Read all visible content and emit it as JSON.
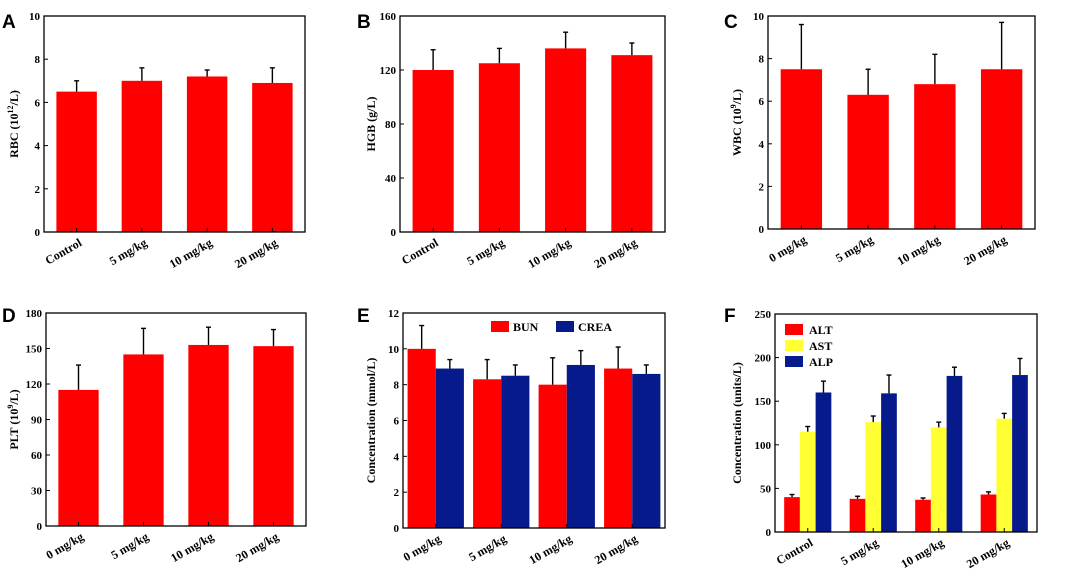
{
  "colors": {
    "red": "#ff0000",
    "navy": "#071a8c",
    "yellow": "#ffff33"
  },
  "chart_data": [
    {
      "panel": "A",
      "type": "bar",
      "ylabel_pre": "RBC (10",
      "ylabel_sup": "12",
      "ylabel_post": "/L)",
      "ylim": [
        0,
        10
      ],
      "yticks": [
        0,
        2,
        4,
        6,
        8,
        10
      ],
      "categories": [
        "Control",
        "5 mg/kg",
        "10 mg/kg",
        "20 mg/kg"
      ],
      "series": [
        {
          "name": "RBC",
          "color": "#ff0000",
          "values": [
            6.5,
            7.0,
            7.2,
            6.9
          ],
          "errors": [
            0.5,
            0.6,
            0.3,
            0.7
          ]
        }
      ]
    },
    {
      "panel": "B",
      "type": "bar",
      "ylabel_pre": "HGB (g/L)",
      "ylabel_sup": "",
      "ylabel_post": "",
      "ylim": [
        0,
        160
      ],
      "yticks": [
        0,
        40,
        80,
        120,
        160
      ],
      "categories": [
        "Control",
        "5 mg/kg",
        "10 mg/kg",
        "20 mg/kg"
      ],
      "series": [
        {
          "name": "HGB",
          "color": "#ff0000",
          "values": [
            120,
            125,
            136,
            131
          ],
          "errors": [
            15,
            11,
            12,
            9
          ]
        }
      ]
    },
    {
      "panel": "C",
      "type": "bar",
      "ylabel_pre": "WBC (10",
      "ylabel_sup": "9",
      "ylabel_post": "/L)",
      "ylim": [
        0,
        10
      ],
      "yticks": [
        0,
        2,
        4,
        6,
        8,
        10
      ],
      "categories": [
        "0 mg/kg",
        "5 mg/kg",
        "10 mg/kg",
        "20 mg/kg"
      ],
      "series": [
        {
          "name": "WBC",
          "color": "#ff0000",
          "values": [
            7.5,
            6.3,
            6.8,
            7.5
          ],
          "errors": [
            2.1,
            1.2,
            1.4,
            2.2
          ]
        }
      ]
    },
    {
      "panel": "D",
      "type": "bar",
      "ylabel_pre": "PLT (10",
      "ylabel_sup": "9",
      "ylabel_post": "/L)",
      "ylim": [
        0,
        180
      ],
      "yticks": [
        0,
        30,
        60,
        90,
        120,
        150,
        180
      ],
      "categories": [
        "0 mg/kg",
        "5 mg/kg",
        "10 mg/kg",
        "20 mg/kg"
      ],
      "series": [
        {
          "name": "PLT",
          "color": "#ff0000",
          "values": [
            115,
            145,
            153,
            152
          ],
          "errors": [
            21,
            22,
            15,
            14
          ]
        }
      ]
    },
    {
      "panel": "E",
      "type": "bar",
      "ylabel_pre": "Concentration (mmol/L)",
      "ylabel_sup": "",
      "ylabel_post": "",
      "ylim": [
        0,
        12
      ],
      "yticks": [
        0,
        2,
        4,
        6,
        8,
        10,
        12
      ],
      "categories": [
        "0 mg/kg",
        "5 mg/kg",
        "10 mg/kg",
        "20 mg/kg"
      ],
      "legend_position": "top-center",
      "series": [
        {
          "name": "BUN",
          "color": "#ff0000",
          "values": [
            10.0,
            8.3,
            8.0,
            8.9
          ],
          "errors": [
            1.3,
            1.1,
            1.5,
            1.2
          ]
        },
        {
          "name": "CREA",
          "color": "#071a8c",
          "values": [
            8.9,
            8.5,
            9.1,
            8.6
          ],
          "errors": [
            0.5,
            0.6,
            0.8,
            0.5
          ]
        }
      ]
    },
    {
      "panel": "F",
      "type": "bar",
      "ylabel_pre": "Concentration (units/L)",
      "ylabel_sup": "",
      "ylabel_post": "",
      "ylim": [
        0,
        250
      ],
      "yticks": [
        0,
        50,
        100,
        150,
        200,
        250
      ],
      "categories": [
        "Control",
        "5 mg/kg",
        "10 mg/kg",
        "20 mg/kg"
      ],
      "legend_position": "top-left",
      "series": [
        {
          "name": "ALT",
          "color": "#ff0000",
          "values": [
            40,
            38,
            37,
            43
          ],
          "errors": [
            3,
            3,
            2,
            3
          ]
        },
        {
          "name": "AST",
          "color": "#ffff33",
          "values": [
            115,
            126,
            120,
            130
          ],
          "errors": [
            6,
            7,
            6,
            6
          ]
        },
        {
          "name": "ALP",
          "color": "#071a8c",
          "values": [
            160,
            159,
            179,
            180
          ],
          "errors": [
            13,
            21,
            10,
            19
          ]
        }
      ]
    }
  ]
}
